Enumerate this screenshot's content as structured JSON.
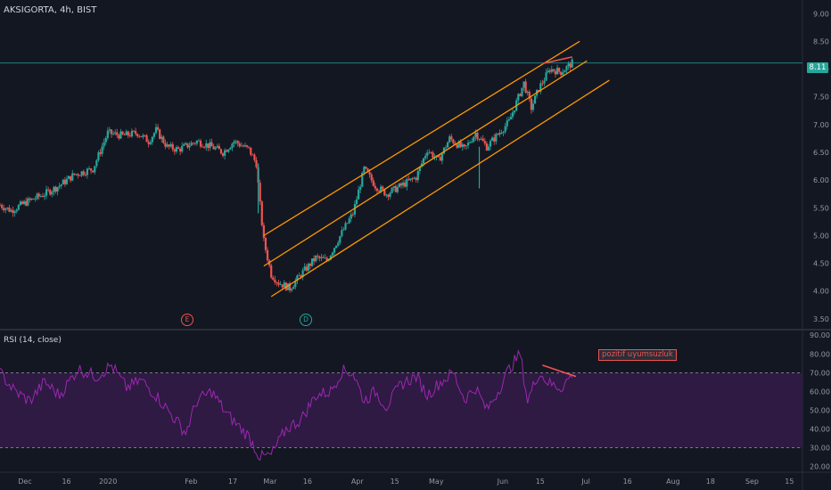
{
  "header": {
    "symbol_label": "AKSIGORTA, 4h, BIST"
  },
  "markers": {
    "e_label": "E",
    "d_label": "D"
  },
  "rsi": {
    "title": "RSI (14, close)",
    "annotation": "pozitif uyumsuzluk"
  },
  "colors": {
    "background": "#131722",
    "up": "#26a69a",
    "down": "#ef5350",
    "channel": "#ff9800",
    "rsi_line": "#9c27b0",
    "rsi_band": "#341b49"
  },
  "chart_data": {
    "type": "candlestick",
    "symbol": "AKSIGORTA",
    "timeframe": "4h",
    "exchange": "BIST",
    "last_price": "8.11",
    "price_axis": {
      "ticks": [
        "9.00",
        "8.50",
        "8.00",
        "7.50",
        "7.00",
        "6.50",
        "6.00",
        "5.50",
        "5.00",
        "4.50",
        "4.00",
        "3.50"
      ],
      "range": [
        3.4,
        9.15
      ]
    },
    "rsi_axis": {
      "ticks": [
        "90.00",
        "80.00",
        "70.00",
        "60.00",
        "50.00",
        "40.00",
        "30.00",
        "20.00"
      ],
      "range": [
        17,
        92
      ],
      "upper_band": 70,
      "lower_band": 30
    },
    "x_ticks": [
      "Dec",
      "16",
      "2020",
      "Feb",
      "17",
      "Mar",
      "16",
      "Apr",
      "15",
      "May",
      "Jun",
      "15",
      "Jul",
      "16",
      "Aug",
      "18",
      "Sep",
      "15"
    ],
    "price_path": [
      {
        "t": 0,
        "v": 5.55
      },
      {
        "t": 3,
        "v": 5.45
      },
      {
        "t": 7,
        "v": 5.6
      },
      {
        "t": 12,
        "v": 5.75
      },
      {
        "t": 16,
        "v": 5.9
      },
      {
        "t": 20,
        "v": 6.1
      },
      {
        "t": 25,
        "v": 6.2
      },
      {
        "t": 29,
        "v": 6.85
      },
      {
        "t": 33,
        "v": 6.8
      },
      {
        "t": 37,
        "v": 6.85
      },
      {
        "t": 40,
        "v": 6.7
      },
      {
        "t": 42,
        "v": 6.9
      },
      {
        "t": 45,
        "v": 6.6
      },
      {
        "t": 48,
        "v": 6.55
      },
      {
        "t": 53,
        "v": 6.7
      },
      {
        "t": 57,
        "v": 6.6
      },
      {
        "t": 60,
        "v": 6.5
      },
      {
        "t": 63,
        "v": 6.7
      },
      {
        "t": 67,
        "v": 6.55
      },
      {
        "t": 69,
        "v": 6.3
      },
      {
        "t": 70,
        "v": 5.55
      },
      {
        "t": 71,
        "v": 4.9
      },
      {
        "t": 73,
        "v": 4.3
      },
      {
        "t": 75,
        "v": 4.15
      },
      {
        "t": 78,
        "v": 4.05
      },
      {
        "t": 81,
        "v": 4.3
      },
      {
        "t": 85,
        "v": 4.6
      },
      {
        "t": 88,
        "v": 4.55
      },
      {
        "t": 92,
        "v": 5.05
      },
      {
        "t": 95,
        "v": 5.4
      },
      {
        "t": 98,
        "v": 6.2
      },
      {
        "t": 101,
        "v": 5.9
      },
      {
        "t": 104,
        "v": 5.75
      },
      {
        "t": 108,
        "v": 5.9
      },
      {
        "t": 112,
        "v": 6.05
      },
      {
        "t": 115,
        "v": 6.55
      },
      {
        "t": 118,
        "v": 6.35
      },
      {
        "t": 121,
        "v": 6.75
      },
      {
        "t": 125,
        "v": 6.55
      },
      {
        "t": 128,
        "v": 6.85
      },
      {
        "t": 131,
        "v": 6.6
      },
      {
        "t": 133,
        "v": 6.75
      },
      {
        "t": 137,
        "v": 7.05
      },
      {
        "t": 141,
        "v": 7.75
      },
      {
        "t": 143,
        "v": 7.3
      },
      {
        "t": 145,
        "v": 7.65
      },
      {
        "t": 148,
        "v": 8.0
      },
      {
        "t": 151,
        "v": 7.95
      },
      {
        "t": 154,
        "v": 8.11
      }
    ],
    "rsi_path": [
      {
        "t": 0,
        "v": 70
      },
      {
        "t": 4,
        "v": 60
      },
      {
        "t": 8,
        "v": 55
      },
      {
        "t": 12,
        "v": 65
      },
      {
        "t": 16,
        "v": 58
      },
      {
        "t": 21,
        "v": 72
      },
      {
        "t": 26,
        "v": 68
      },
      {
        "t": 30,
        "v": 74
      },
      {
        "t": 34,
        "v": 62
      },
      {
        "t": 38,
        "v": 66
      },
      {
        "t": 42,
        "v": 58
      },
      {
        "t": 46,
        "v": 48
      },
      {
        "t": 50,
        "v": 38
      },
      {
        "t": 53,
        "v": 55
      },
      {
        "t": 57,
        "v": 60
      },
      {
        "t": 61,
        "v": 48
      },
      {
        "t": 64,
        "v": 42
      },
      {
        "t": 67,
        "v": 36
      },
      {
        "t": 70,
        "v": 25
      },
      {
        "t": 73,
        "v": 26
      },
      {
        "t": 77,
        "v": 40
      },
      {
        "t": 81,
        "v": 45
      },
      {
        "t": 85,
        "v": 58
      },
      {
        "t": 89,
        "v": 60
      },
      {
        "t": 92,
        "v": 71
      },
      {
        "t": 95,
        "v": 70
      },
      {
        "t": 98,
        "v": 55
      },
      {
        "t": 101,
        "v": 60
      },
      {
        "t": 104,
        "v": 52
      },
      {
        "t": 108,
        "v": 64
      },
      {
        "t": 112,
        "v": 68
      },
      {
        "t": 115,
        "v": 58
      },
      {
        "t": 118,
        "v": 64
      },
      {
        "t": 122,
        "v": 70
      },
      {
        "t": 125,
        "v": 56
      },
      {
        "t": 128,
        "v": 62
      },
      {
        "t": 131,
        "v": 50
      },
      {
        "t": 134,
        "v": 60
      },
      {
        "t": 137,
        "v": 72
      },
      {
        "t": 140,
        "v": 80
      },
      {
        "t": 142,
        "v": 55
      },
      {
        "t": 145,
        "v": 70
      },
      {
        "t": 148,
        "v": 64
      },
      {
        "t": 151,
        "v": 62
      },
      {
        "t": 154,
        "v": 69
      }
    ],
    "channel_lines": [
      {
        "name": "upper",
        "from": {
          "t": 71,
          "v": 5.0
        },
        "to": {
          "t": 156,
          "v": 8.5
        }
      },
      {
        "name": "middle",
        "from": {
          "t": 71,
          "v": 4.45
        },
        "to": {
          "t": 158,
          "v": 8.15
        }
      },
      {
        "name": "lower",
        "from": {
          "t": 73,
          "v": 3.9
        },
        "to": {
          "t": 164,
          "v": 7.8
        }
      }
    ],
    "divergence_lines": [
      {
        "pane": "price",
        "from": {
          "t": 146,
          "v": 8.1
        },
        "to": {
          "t": 154,
          "v": 8.22
        }
      },
      {
        "pane": "rsi",
        "from": {
          "t": 146,
          "v": 74
        },
        "to": {
          "t": 155,
          "v": 68
        }
      }
    ]
  }
}
